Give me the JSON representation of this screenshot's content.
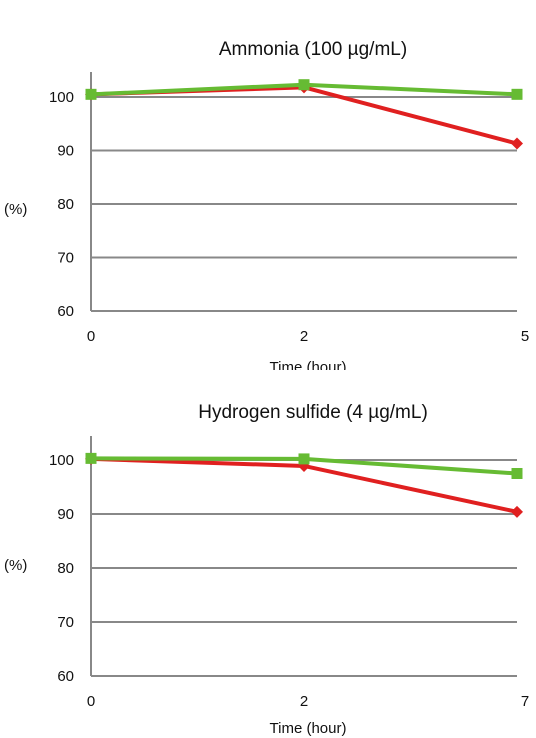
{
  "chart_data": [
    {
      "type": "line",
      "title": "Ammonia (100 µg/mL)",
      "xlabel": "Time (hour)",
      "ylabel": "(%)",
      "categories": [
        "0",
        "2",
        "5"
      ],
      "ylim": [
        60,
        100
      ],
      "yticks": [
        "60",
        "70",
        "80",
        "90",
        "100"
      ],
      "grid": true,
      "legend": "none",
      "series": [
        {
          "color": "#e02020",
          "marker": "diamond",
          "values": [
            100.5,
            101.8,
            91.3
          ]
        },
        {
          "color": "#66bb33",
          "marker": "square",
          "values": [
            100.5,
            102.3,
            100.5
          ]
        }
      ]
    },
    {
      "type": "line",
      "title": "Hydrogen sulfide (4 µg/mL)",
      "xlabel": "Time (hour)",
      "ylabel": "(%)",
      "categories": [
        "0",
        "2",
        "7"
      ],
      "ylim": [
        60,
        100
      ],
      "yticks": [
        "60",
        "70",
        "80",
        "90",
        "100"
      ],
      "grid": true,
      "legend": "none",
      "series": [
        {
          "color": "#e02020",
          "marker": "diamond",
          "values": [
            100.2,
            98.9,
            90.4
          ]
        },
        {
          "color": "#66bb33",
          "marker": "square",
          "values": [
            100.3,
            100.2,
            97.5
          ]
        }
      ]
    }
  ]
}
